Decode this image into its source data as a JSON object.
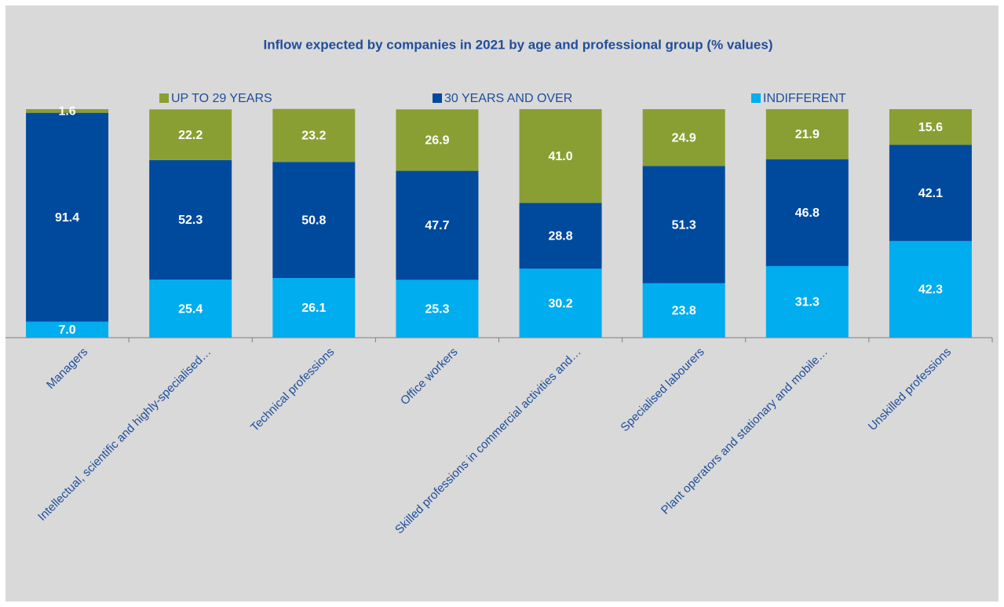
{
  "chart_data": {
    "type": "stacked_bar",
    "title": "Inflow expected by companies in 2021 by age and professional group (% values)",
    "categories": [
      "Managers",
      "Intellectual, scientific and highly-specialised…",
      "Technical professions",
      "Office workers",
      "Skilled professions in commercial activities and…",
      "Specialised labourers",
      "Plant operators and stationary and mobile…",
      "Unskilled professions"
    ],
    "series": [
      {
        "name": "UP TO 29 YEARS",
        "color": "#8a9f33",
        "values": [
          1.6,
          22.2,
          23.2,
          26.9,
          41,
          24.9,
          21.9,
          15.6
        ],
        "value_labels": [
          "1.6",
          "22.2",
          "23.2",
          "26.9",
          "41.0",
          "24.9",
          "21.9",
          "15.6"
        ]
      },
      {
        "name": "30 YEARS AND OVER",
        "color": "#004a9e",
        "values": [
          91.4,
          52.3,
          50.8,
          47.7,
          28.8,
          51.3,
          46.8,
          42.1
        ],
        "value_labels": [
          "91.4",
          "52.3",
          "50.8",
          "47.7",
          "28.8",
          "51.3",
          "46.8",
          "42.1"
        ]
      },
      {
        "name": "INDIFFERENT",
        "color": "#00adef",
        "values": [
          7,
          25.4,
          26.1,
          25.3,
          30.2,
          23.8,
          31.3,
          42.3
        ],
        "value_labels": [
          "7.0",
          "25.4",
          "26.1",
          "25.3",
          "30.2",
          "23.8",
          "31.3",
          "42.3"
        ]
      }
    ],
    "ylim": [
      0,
      100
    ]
  }
}
